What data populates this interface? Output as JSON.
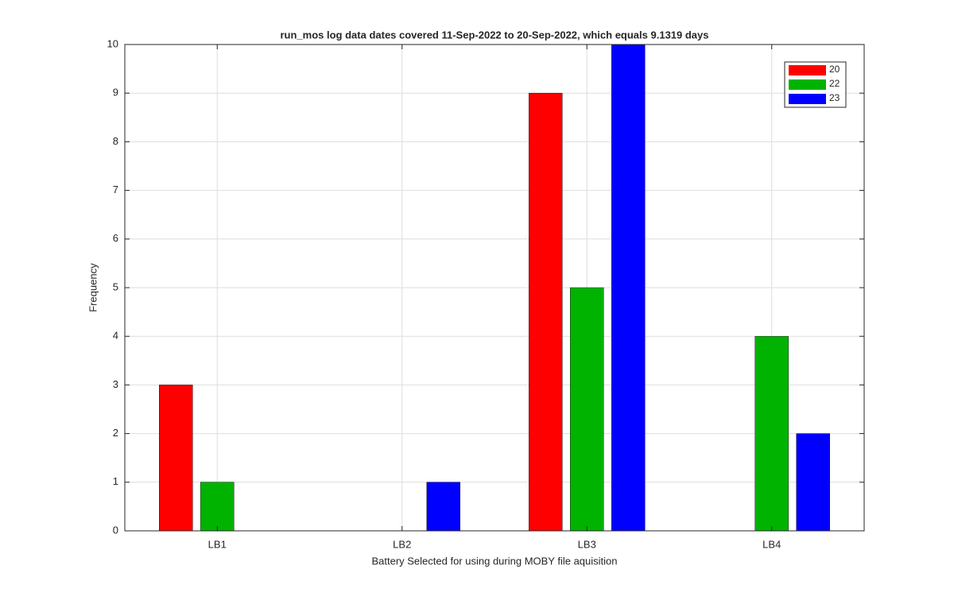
{
  "chart_data": {
    "type": "bar",
    "title": "run_mos log data  dates covered 11-Sep-2022 to 20-Sep-2022, which equals 9.1319 days",
    "xlabel": "Battery Selected for using during MOBY file aquisition",
    "ylabel": "Frequency",
    "categories": [
      "LB1",
      "LB2",
      "LB3",
      "LB4"
    ],
    "series": [
      {
        "name": "20",
        "color": "#ff0000",
        "values": [
          3,
          0,
          9,
          0
        ]
      },
      {
        "name": "22",
        "color": "#00b300",
        "values": [
          1,
          0,
          5,
          4
        ]
      },
      {
        "name": "23",
        "color": "#0000ff",
        "values": [
          0,
          1,
          10,
          2
        ]
      }
    ],
    "ylim": [
      0,
      10
    ],
    "yticks": [
      0,
      1,
      2,
      3,
      4,
      5,
      6,
      7,
      8,
      9,
      10
    ],
    "grid": true,
    "legend": "northeast"
  }
}
